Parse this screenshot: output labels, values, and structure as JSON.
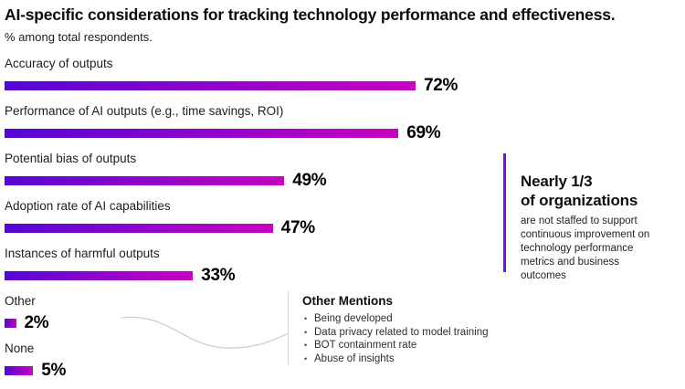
{
  "header": {
    "title": "AI-specific considerations for tracking technology performance and effectiveness.",
    "subtitle": "% among total respondents."
  },
  "chart_data": {
    "type": "bar",
    "orientation": "horizontal",
    "unit": "%",
    "categories": [
      "Accuracy of outputs",
      "Performance of AI outputs (e.g., time savings, ROI)",
      "Potential bias of outputs",
      "Adoption rate of AI capabilities",
      "Instances of harmful outputs",
      "Other",
      "None"
    ],
    "values": [
      72,
      69,
      49,
      47,
      33,
      2,
      5
    ],
    "value_labels": [
      "72%",
      "69%",
      "49%",
      "47%",
      "33%",
      "2%",
      "5%"
    ],
    "xlim": [
      0,
      72
    ],
    "grid": false,
    "legend": "none",
    "bar_gradient_start": "#5406d6",
    "bar_gradient_end": "#c801c0"
  },
  "callout": {
    "accent_color": "#8405ec",
    "heading_lines": [
      "Nearly 1/3",
      "of organizations"
    ],
    "body": "are not staffed to support continuous improvement on technology performance metrics and business outcomes"
  },
  "other_mentions": {
    "heading": "Other Mentions",
    "items": [
      "Being developed",
      "Data privacy related to model training",
      "BOT containment rate",
      "Abuse of insights"
    ]
  }
}
